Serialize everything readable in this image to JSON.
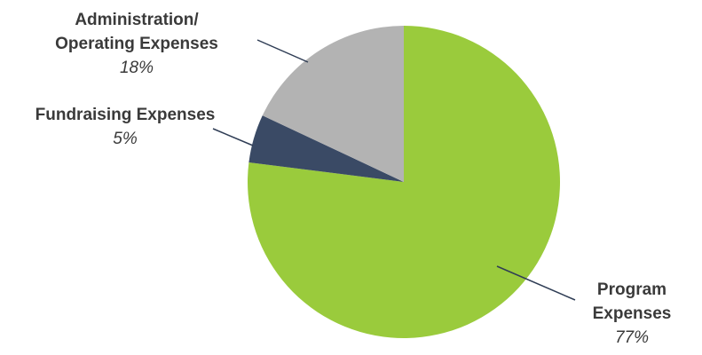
{
  "chart_data": {
    "type": "pie",
    "title": "",
    "slices": [
      {
        "label_lines": [
          "Program",
          "Expenses"
        ],
        "value": 77,
        "percent_label": "77%",
        "color": "#9acb3c"
      },
      {
        "label_lines": [
          "Fundraising Expenses"
        ],
        "value": 5,
        "percent_label": "5%",
        "color": "#3a4a65"
      },
      {
        "label_lines": [
          "Administration/",
          "Operating Expenses"
        ],
        "value": 18,
        "percent_label": "18%",
        "color": "#b3b3b3"
      }
    ],
    "start_angle_deg": 0,
    "direction": "clockwise",
    "legend": "none",
    "leader_line_color": "#2f3d55"
  }
}
